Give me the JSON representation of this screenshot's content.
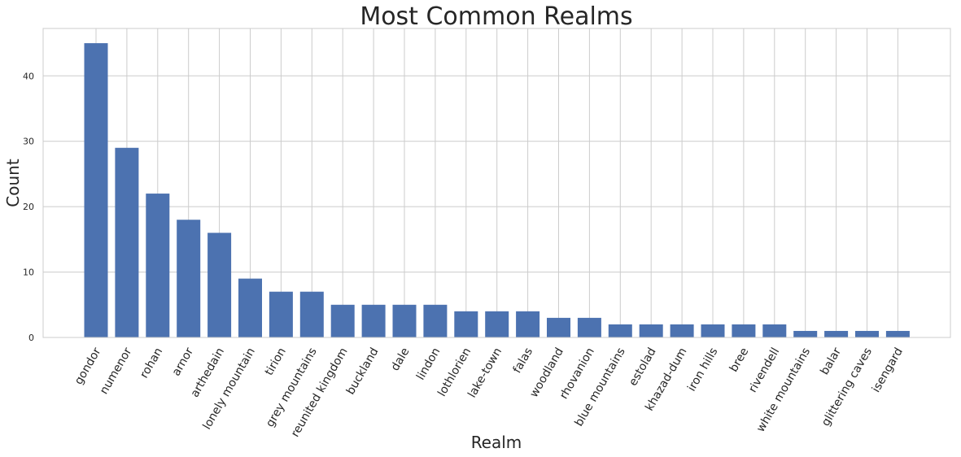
{
  "chart_data": {
    "type": "bar",
    "title": "Most Common Realms",
    "xlabel": "Realm",
    "ylabel": "Count",
    "categories": [
      "gondor",
      "numenor",
      "rohan",
      "arnor",
      "arthedain",
      "lonely mountain",
      "tirion",
      "grey mountains",
      "reunited kingdom",
      "buckland",
      "dale",
      "lindon",
      "lothlorien",
      "lake-town",
      "falas",
      "woodland",
      "rhovanion",
      "blue mountains",
      "estolad",
      "khazad-dum",
      "iron hills",
      "bree",
      "rivendell",
      "white mountains",
      "balar",
      "glittering caves",
      "isengard"
    ],
    "values": [
      45,
      29,
      22,
      18,
      16,
      9,
      7,
      7,
      5,
      5,
      5,
      5,
      4,
      4,
      4,
      3,
      3,
      2,
      2,
      2,
      2,
      2,
      2,
      1,
      1,
      1,
      1
    ],
    "yticks": [
      0,
      10,
      20,
      30,
      40
    ],
    "ylim": [
      0,
      47.25
    ],
    "grid": true,
    "bar_color": "#4c72b0"
  }
}
